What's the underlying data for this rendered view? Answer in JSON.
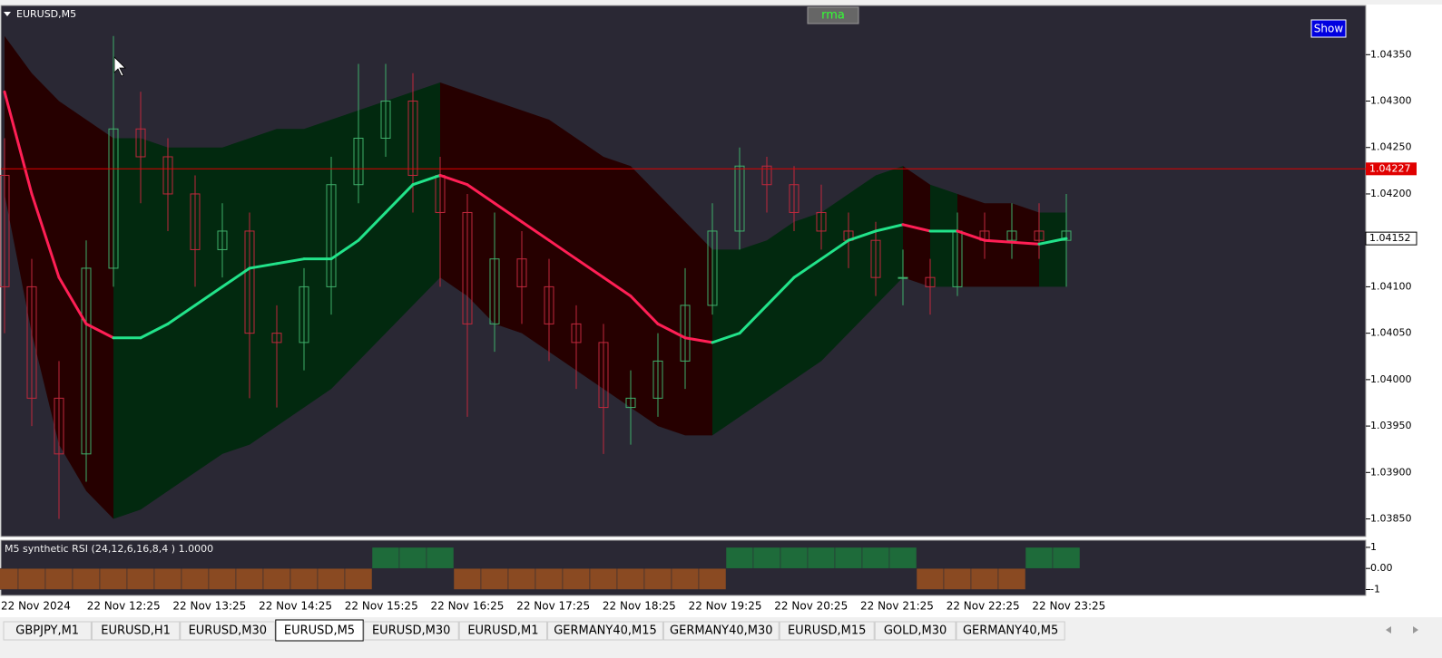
{
  "symbol": "EURUSD,M5",
  "buttons": {
    "rma": "rma",
    "show": "Show"
  },
  "chart_data": {
    "type": "candlestick",
    "open": [
      1.0422,
      1.041,
      1.0398,
      1.0392,
      1.0412,
      1.0427,
      1.0424,
      1.042,
      1.0414,
      1.0416,
      1.0405,
      1.0404,
      1.041,
      1.0421,
      1.0426,
      1.043,
      1.0422,
      1.0418,
      1.0406,
      1.0413,
      1.041,
      1.0406,
      1.0404,
      1.0397,
      1.0398,
      1.0402,
      1.0408,
      1.0416,
      1.0423,
      1.0421,
      1.0418,
      1.0416,
      1.0415,
      1.0411,
      1.0411,
      1.041,
      1.0416,
      1.0415,
      1.0416,
      1.0415
    ],
    "high": [
      1.0426,
      1.0413,
      1.0402,
      1.0415,
      1.0437,
      1.0431,
      1.0426,
      1.0422,
      1.0419,
      1.0418,
      1.0408,
      1.0412,
      1.0424,
      1.0434,
      1.0434,
      1.0433,
      1.0424,
      1.042,
      1.0418,
      1.0416,
      1.0413,
      1.0408,
      1.0406,
      1.0401,
      1.0405,
      1.0412,
      1.0419,
      1.0425,
      1.0424,
      1.0423,
      1.0421,
      1.0418,
      1.0417,
      1.0414,
      1.0413,
      1.0418,
      1.0418,
      1.0419,
      1.0419,
      1.042
    ],
    "low": [
      1.0405,
      1.0395,
      1.0385,
      1.0389,
      1.041,
      1.0419,
      1.0416,
      1.041,
      1.0411,
      1.0398,
      1.0397,
      1.0401,
      1.0407,
      1.0419,
      1.0424,
      1.0418,
      1.041,
      1.0396,
      1.0403,
      1.0406,
      1.0402,
      1.0399,
      1.0392,
      1.0393,
      1.0396,
      1.0399,
      1.0407,
      1.0414,
      1.0418,
      1.0416,
      1.0414,
      1.0412,
      1.0409,
      1.0408,
      1.0407,
      1.0409,
      1.0413,
      1.0413,
      1.0413,
      1.041
    ],
    "close": [
      1.041,
      1.0398,
      1.0392,
      1.0412,
      1.0427,
      1.0424,
      1.042,
      1.0414,
      1.0416,
      1.0405,
      1.0404,
      1.041,
      1.0421,
      1.0426,
      1.043,
      1.0422,
      1.0418,
      1.0406,
      1.0413,
      1.041,
      1.0406,
      1.0404,
      1.0397,
      1.0398,
      1.0402,
      1.0408,
      1.0416,
      1.0423,
      1.0421,
      1.0418,
      1.0416,
      1.0415,
      1.0411,
      1.0411,
      1.041,
      1.0416,
      1.0415,
      1.0416,
      1.0415,
      1.0416
    ],
    "ma": [
      1.0431,
      1.042,
      1.0411,
      1.0406,
      1.04045,
      1.04045,
      1.0406,
      1.0408,
      1.041,
      1.0412,
      1.04125,
      1.0413,
      1.0413,
      1.0415,
      1.0418,
      1.0421,
      1.0422,
      1.0421,
      1.0419,
      1.0417,
      1.0415,
      1.0413,
      1.0411,
      1.0409,
      1.0406,
      1.04045,
      1.0404,
      1.0405,
      1.0408,
      1.0411,
      1.0413,
      1.0415,
      1.0416,
      1.04167,
      1.0416,
      1.0416,
      1.0415,
      1.04148,
      1.04146,
      1.04152
    ],
    "band_upper": [
      1.0437,
      1.0433,
      1.043,
      1.0428,
      1.0426,
      1.0426,
      1.0425,
      1.0425,
      1.0425,
      1.0426,
      1.0427,
      1.0427,
      1.0428,
      1.0429,
      1.043,
      1.0431,
      1.0432,
      1.0431,
      1.043,
      1.0429,
      1.0428,
      1.0426,
      1.0424,
      1.0423,
      1.042,
      1.0417,
      1.0414,
      1.0414,
      1.0415,
      1.0417,
      1.0418,
      1.042,
      1.0422,
      1.0423,
      1.0421,
      1.042,
      1.0419,
      1.0419,
      1.0418,
      1.0418
    ],
    "band_lower": [
      1.042,
      1.0405,
      1.0393,
      1.0388,
      1.0385,
      1.0386,
      1.0388,
      1.039,
      1.0392,
      1.0393,
      1.0395,
      1.0397,
      1.0399,
      1.0402,
      1.0405,
      1.0408,
      1.0411,
      1.0409,
      1.0406,
      1.0405,
      1.0403,
      1.0401,
      1.0399,
      1.0397,
      1.0395,
      1.0394,
      1.0394,
      1.0396,
      1.0398,
      1.04,
      1.0402,
      1.0405,
      1.0408,
      1.0411,
      1.041,
      1.041,
      1.041,
      1.041,
      1.041,
      1.041
    ],
    "up_color": "#3fae6a",
    "down_color": "#c0283c",
    "ma_up_color": "#22e38a",
    "ma_down_color": "#ff1f55",
    "band_up_color": "#02290f",
    "band_down_color": "#260000",
    "ylim": [
      1.03831,
      1.04403
    ],
    "yticks": [
      {
        "value": 1.0435,
        "label": "1.04350"
      },
      {
        "value": 1.043,
        "label": "1.04300"
      },
      {
        "value": 1.0425,
        "label": "1.04250"
      },
      {
        "value": 1.042,
        "label": "1.04200"
      },
      {
        "value": 1.0415,
        "label": "1.04150"
      },
      {
        "value": 1.041,
        "label": "1.04100"
      },
      {
        "value": 1.0405,
        "label": "1.04050"
      },
      {
        "value": 1.04,
        "label": "1.04000"
      },
      {
        "value": 1.0395,
        "label": "1.03950"
      },
      {
        "value": 1.039,
        "label": "1.03900"
      },
      {
        "value": 1.0385,
        "label": "1.03850"
      }
    ],
    "price_line": {
      "value": 1.04227,
      "label": "1.04227",
      "color": "#e00000"
    },
    "last_price": {
      "value": 1.04152,
      "label": "1.04152"
    },
    "time_labels": [
      "22 Nov 2024",
      "22 Nov 12:25",
      "22 Nov 13:25",
      "22 Nov 14:25",
      "22 Nov 15:25",
      "22 Nov 16:25",
      "22 Nov 17:25",
      "22 Nov 18:25",
      "22 Nov 19:25",
      "22 Nov 20:25",
      "22 Nov 21:25",
      "22 Nov 22:25",
      "22 Nov 23:25"
    ]
  },
  "indicator": {
    "title": "M5 synthetic RSI  (24,12,6,16,8,4 ) 1.0000",
    "values": [
      -1,
      -1,
      -1,
      -1,
      -1,
      -1,
      -1,
      -1,
      -1,
      -1,
      -1,
      -1,
      -1,
      -1,
      1,
      1,
      1,
      -1,
      -1,
      -1,
      -1,
      -1,
      -1,
      -1,
      -1,
      -1,
      -1,
      1,
      1,
      1,
      1,
      1,
      1,
      1,
      -1,
      -1,
      -1,
      -1,
      1,
      1
    ],
    "up_color": "#1e6b3a",
    "down_color": "#8a4a22",
    "ylim": [
      -1.28,
      1.34
    ],
    "yticks": [
      1,
      {
        "value": 0,
        "label": "0.00"
      },
      -1
    ]
  },
  "tabs": [
    "GBPJPY,M1",
    "EURUSD,H1",
    "EURUSD,M30",
    "EURUSD,M5",
    "EURUSD,M30",
    "EURUSD,M1",
    "GERMANY40,M15",
    "GERMANY40,M30",
    "EURUSD,M15",
    "GOLD,M30",
    "GERMANY40,M5"
  ],
  "active_tab": 3
}
